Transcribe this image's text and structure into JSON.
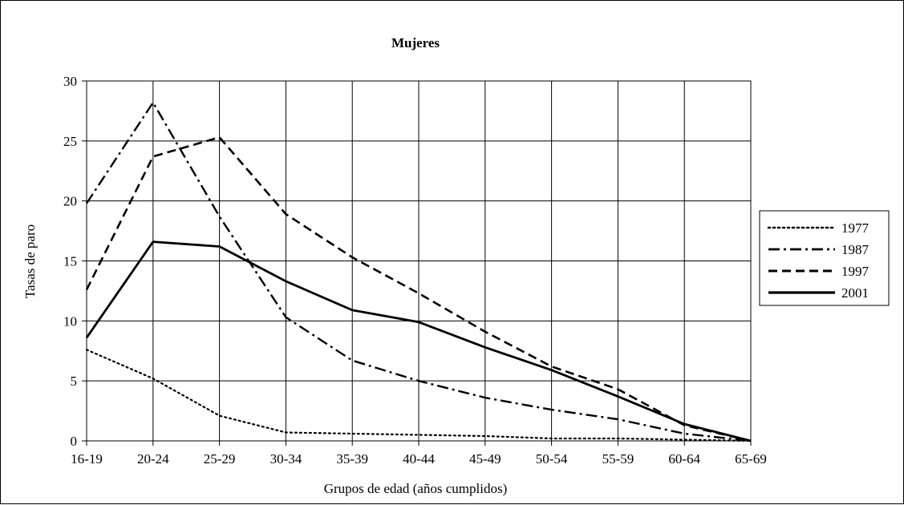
{
  "chart_data": {
    "type": "line",
    "title": "Mujeres",
    "xlabel": "Grupos de edad (años cumplidos)",
    "ylabel": "Tasas de paro",
    "categories": [
      "16-19",
      "20-24",
      "25-29",
      "30-34",
      "35-39",
      "40-44",
      "45-49",
      "50-54",
      "55-59",
      "60-64",
      "65-69"
    ],
    "ylim": [
      0,
      30
    ],
    "yticks": [
      0,
      5,
      10,
      15,
      20,
      25,
      30
    ],
    "grid": true,
    "legend_position": "right",
    "series": [
      {
        "name": "1977",
        "style": "dotted",
        "values": [
          7.6,
          5.2,
          2.1,
          0.7,
          0.6,
          0.5,
          0.4,
          0.2,
          0.2,
          0.1,
          0
        ]
      },
      {
        "name": "1987",
        "style": "dash-dot",
        "values": [
          19.8,
          28.2,
          18.7,
          10.3,
          6.7,
          5.0,
          3.6,
          2.6,
          1.8,
          0.6,
          0
        ]
      },
      {
        "name": "1997",
        "style": "dashed",
        "values": [
          12.6,
          23.7,
          25.3,
          18.9,
          15.3,
          12.3,
          9.1,
          6.2,
          4.3,
          1.3,
          0
        ]
      },
      {
        "name": "2001",
        "style": "solid",
        "values": [
          8.6,
          16.6,
          16.2,
          13.3,
          10.9,
          9.9,
          7.8,
          5.9,
          3.7,
          1.4,
          0
        ]
      }
    ]
  }
}
